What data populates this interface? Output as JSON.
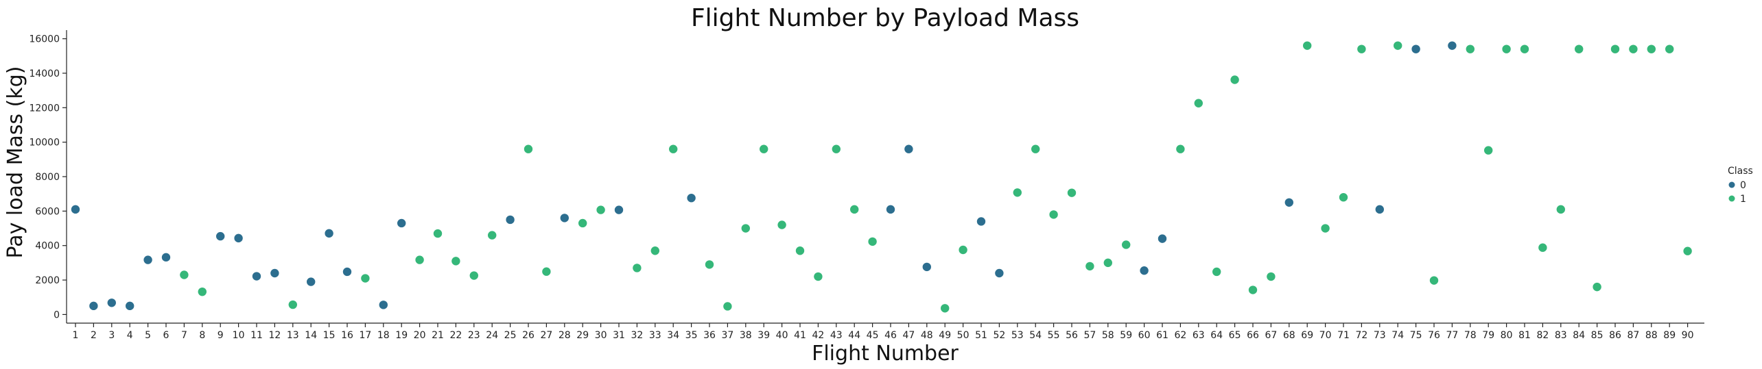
{
  "chart_data": {
    "type": "scatter",
    "title": "Flight Number by Payload Mass",
    "xlabel": "Flight Number",
    "ylabel": "Pay load Mass (kg)",
    "x_categories": [
      1,
      2,
      3,
      4,
      5,
      6,
      7,
      8,
      9,
      10,
      11,
      12,
      13,
      14,
      15,
      16,
      17,
      18,
      19,
      20,
      21,
      22,
      23,
      24,
      25,
      26,
      27,
      28,
      29,
      30,
      31,
      32,
      33,
      34,
      35,
      36,
      37,
      38,
      39,
      40,
      41,
      42,
      43,
      44,
      45,
      46,
      47,
      48,
      49,
      50,
      51,
      52,
      53,
      54,
      55,
      56,
      57,
      58,
      59,
      60,
      61,
      62,
      63,
      64,
      65,
      66,
      67,
      68,
      69,
      70,
      71,
      72,
      73,
      74,
      75,
      76,
      77,
      78,
      79,
      80,
      81,
      82,
      83,
      84,
      85,
      86,
      87,
      88,
      89,
      90
    ],
    "ylim": [
      -500,
      16500
    ],
    "yticks": [
      0,
      2000,
      4000,
      6000,
      8000,
      10000,
      12000,
      14000,
      16000
    ],
    "grid": false,
    "legend": {
      "title": "Class",
      "placement": "right",
      "entries": [
        {
          "label": "0",
          "color": "#2c6e8f"
        },
        {
          "label": "1",
          "color": "#35b779"
        }
      ]
    },
    "points": [
      {
        "x": 1,
        "y": 6100,
        "class": 0
      },
      {
        "x": 2,
        "y": 500,
        "class": 0
      },
      {
        "x": 3,
        "y": 680,
        "class": 0
      },
      {
        "x": 4,
        "y": 500,
        "class": 0
      },
      {
        "x": 5,
        "y": 3170,
        "class": 0
      },
      {
        "x": 6,
        "y": 3320,
        "class": 0
      },
      {
        "x": 7,
        "y": 2300,
        "class": 1
      },
      {
        "x": 8,
        "y": 1320,
        "class": 1
      },
      {
        "x": 9,
        "y": 4540,
        "class": 0
      },
      {
        "x": 10,
        "y": 4430,
        "class": 0
      },
      {
        "x": 11,
        "y": 2220,
        "class": 0
      },
      {
        "x": 12,
        "y": 2400,
        "class": 0
      },
      {
        "x": 13,
        "y": 570,
        "class": 1
      },
      {
        "x": 14,
        "y": 1900,
        "class": 0
      },
      {
        "x": 15,
        "y": 4710,
        "class": 0
      },
      {
        "x": 16,
        "y": 2480,
        "class": 0
      },
      {
        "x": 17,
        "y": 2100,
        "class": 1
      },
      {
        "x": 18,
        "y": 560,
        "class": 0
      },
      {
        "x": 19,
        "y": 5300,
        "class": 0
      },
      {
        "x": 20,
        "y": 3170,
        "class": 1
      },
      {
        "x": 21,
        "y": 4700,
        "class": 1
      },
      {
        "x": 22,
        "y": 3100,
        "class": 1
      },
      {
        "x": 23,
        "y": 2260,
        "class": 1
      },
      {
        "x": 24,
        "y": 4600,
        "class": 1
      },
      {
        "x": 25,
        "y": 5500,
        "class": 0
      },
      {
        "x": 26,
        "y": 9600,
        "class": 1
      },
      {
        "x": 27,
        "y": 2490,
        "class": 1
      },
      {
        "x": 28,
        "y": 5600,
        "class": 0
      },
      {
        "x": 29,
        "y": 5300,
        "class": 1
      },
      {
        "x": 30,
        "y": 6070,
        "class": 1
      },
      {
        "x": 31,
        "y": 6070,
        "class": 0
      },
      {
        "x": 32,
        "y": 2700,
        "class": 1
      },
      {
        "x": 33,
        "y": 3700,
        "class": 1
      },
      {
        "x": 34,
        "y": 9600,
        "class": 1
      },
      {
        "x": 35,
        "y": 6760,
        "class": 0
      },
      {
        "x": 36,
        "y": 2900,
        "class": 1
      },
      {
        "x": 37,
        "y": 475,
        "class": 1
      },
      {
        "x": 38,
        "y": 5000,
        "class": 1
      },
      {
        "x": 39,
        "y": 9600,
        "class": 1
      },
      {
        "x": 40,
        "y": 5200,
        "class": 1
      },
      {
        "x": 41,
        "y": 3700,
        "class": 1
      },
      {
        "x": 42,
        "y": 2200,
        "class": 1
      },
      {
        "x": 43,
        "y": 9600,
        "class": 1
      },
      {
        "x": 44,
        "y": 6100,
        "class": 1
      },
      {
        "x": 45,
        "y": 4230,
        "class": 1
      },
      {
        "x": 46,
        "y": 6100,
        "class": 0
      },
      {
        "x": 47,
        "y": 9600,
        "class": 0
      },
      {
        "x": 48,
        "y": 2760,
        "class": 0
      },
      {
        "x": 49,
        "y": 362,
        "class": 1
      },
      {
        "x": 50,
        "y": 3750,
        "class": 1
      },
      {
        "x": 51,
        "y": 5400,
        "class": 0
      },
      {
        "x": 52,
        "y": 2400,
        "class": 0
      },
      {
        "x": 53,
        "y": 7075,
        "class": 1
      },
      {
        "x": 54,
        "y": 9600,
        "class": 1
      },
      {
        "x": 55,
        "y": 5800,
        "class": 1
      },
      {
        "x": 56,
        "y": 7060,
        "class": 1
      },
      {
        "x": 57,
        "y": 2800,
        "class": 1
      },
      {
        "x": 58,
        "y": 3000,
        "class": 1
      },
      {
        "x": 59,
        "y": 4050,
        "class": 1
      },
      {
        "x": 60,
        "y": 2550,
        "class": 0
      },
      {
        "x": 61,
        "y": 4400,
        "class": 0
      },
      {
        "x": 62,
        "y": 9600,
        "class": 1
      },
      {
        "x": 63,
        "y": 12260,
        "class": 1
      },
      {
        "x": 64,
        "y": 2480,
        "class": 1
      },
      {
        "x": 65,
        "y": 13620,
        "class": 1
      },
      {
        "x": 66,
        "y": 1425,
        "class": 1
      },
      {
        "x": 67,
        "y": 2200,
        "class": 1
      },
      {
        "x": 68,
        "y": 6500,
        "class": 0
      },
      {
        "x": 69,
        "y": 15600,
        "class": 1
      },
      {
        "x": 70,
        "y": 5000,
        "class": 1
      },
      {
        "x": 71,
        "y": 6800,
        "class": 1
      },
      {
        "x": 72,
        "y": 15400,
        "class": 1
      },
      {
        "x": 73,
        "y": 6100,
        "class": 0
      },
      {
        "x": 74,
        "y": 15600,
        "class": 1
      },
      {
        "x": 75,
        "y": 15400,
        "class": 0
      },
      {
        "x": 76,
        "y": 1977,
        "class": 1
      },
      {
        "x": 77,
        "y": 15600,
        "class": 0
      },
      {
        "x": 78,
        "y": 15400,
        "class": 1
      },
      {
        "x": 79,
        "y": 9525,
        "class": 1
      },
      {
        "x": 80,
        "y": 15400,
        "class": 1
      },
      {
        "x": 81,
        "y": 15400,
        "class": 1
      },
      {
        "x": 82,
        "y": 3880,
        "class": 1
      },
      {
        "x": 83,
        "y": 6100,
        "class": 1
      },
      {
        "x": 84,
        "y": 15400,
        "class": 1
      },
      {
        "x": 85,
        "y": 1600,
        "class": 1
      },
      {
        "x": 86,
        "y": 15400,
        "class": 1
      },
      {
        "x": 87,
        "y": 15400,
        "class": 1
      },
      {
        "x": 88,
        "y": 15400,
        "class": 1
      },
      {
        "x": 89,
        "y": 15400,
        "class": 1
      },
      {
        "x": 90,
        "y": 3681,
        "class": 1
      }
    ]
  }
}
